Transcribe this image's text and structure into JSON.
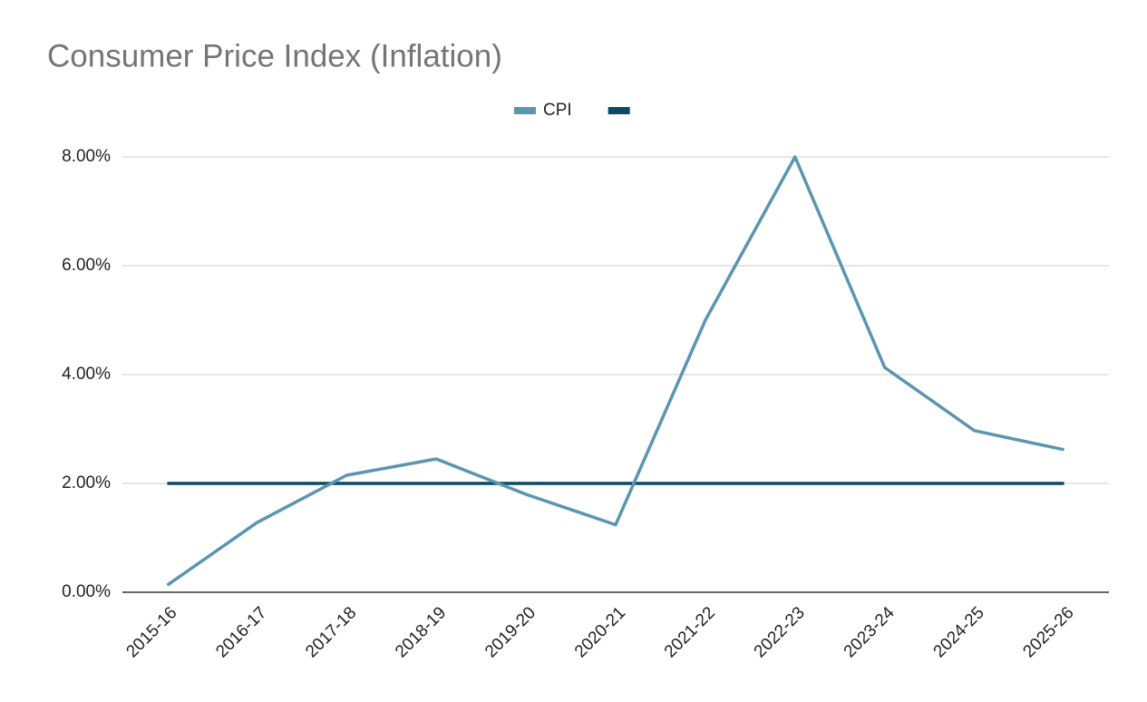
{
  "chart_data": {
    "type": "line",
    "title": "Consumer Price Index (Inflation)",
    "categories": [
      "2015-16",
      "2016-17",
      "2017-18",
      "2018-19",
      "2019-20",
      "2020-21",
      "2021-22",
      "2022-23",
      "2023-24",
      "2024-25",
      "2025-26"
    ],
    "series": [
      {
        "name": "CPI",
        "color": "#5b95b0",
        "values": [
          0.13,
          1.28,
          2.15,
          2.45,
          1.8,
          1.24,
          5.0,
          8.0,
          4.13,
          2.97,
          2.62
        ]
      },
      {
        "color": "#0b4a63",
        "values": [
          2,
          2,
          2,
          2,
          2,
          2,
          2,
          2,
          2,
          2,
          2
        ]
      }
    ],
    "ylim": [
      0,
      8
    ],
    "yticks": [
      {
        "value": 0,
        "label": "0.00%"
      },
      {
        "value": 2,
        "label": "2.00%"
      },
      {
        "value": 4,
        "label": "4.00%"
      },
      {
        "value": 6,
        "label": "6.00%"
      },
      {
        "value": 8,
        "label": "8.00%"
      }
    ],
    "grid": true,
    "legend": "top"
  }
}
